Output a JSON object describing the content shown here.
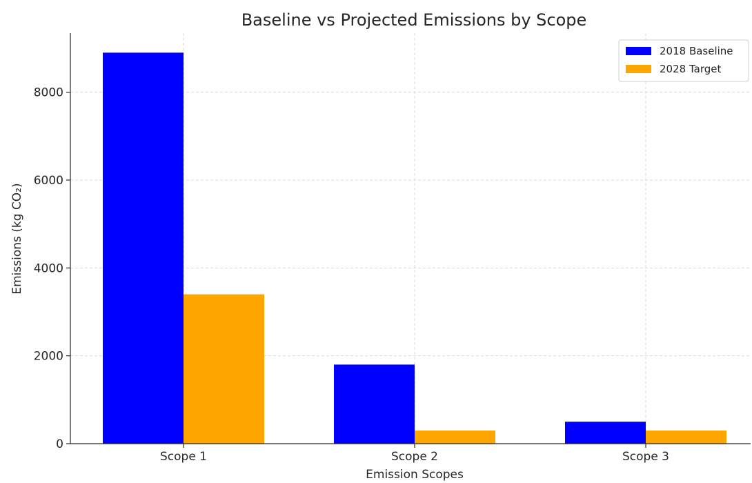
{
  "chart_data": {
    "type": "bar",
    "title": "Baseline vs Projected Emissions by Scope",
    "xlabel": "Emission Scopes",
    "ylabel": "Emissions (kg CO₂)",
    "categories": [
      "Scope 1",
      "Scope 2",
      "Scope 3"
    ],
    "series": [
      {
        "name": "2018 Baseline",
        "values": [
          8900,
          1800,
          500
        ],
        "color": "#0000ff"
      },
      {
        "name": "2028 Target",
        "values": [
          3400,
          300,
          300
        ],
        "color": "#ffa500"
      }
    ],
    "ylim": [
      0,
      9345
    ],
    "yticks": [
      0,
      2000,
      4000,
      6000,
      8000
    ],
    "grid": true,
    "legend_position": "top-right"
  }
}
